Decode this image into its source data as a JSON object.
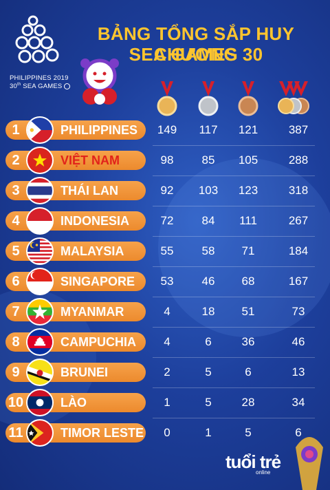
{
  "colors": {
    "title": "#ffc52e",
    "bar": "#ef8e33",
    "highlight_name": "#e2231a",
    "background": "#1d3f9c"
  },
  "event": {
    "line1": "PHILIPPINES 2019",
    "line2": "30",
    "line2_sup": "th",
    "line2_rest": " SEA GAMES"
  },
  "title": {
    "line1": "BẢNG TỔNG SẮP HUY CHƯƠNG",
    "line2": "SEA GAMES 30"
  },
  "medal_icons": [
    "gold-medal-icon",
    "silver-medal-icon",
    "bronze-medal-icon",
    "all-medals-icon"
  ],
  "rows": [
    {
      "rank": "1",
      "name": "PHILIPPINES",
      "gold": "149",
      "silver": "117",
      "bronze": "121",
      "total": "387",
      "flag": "philippines-flag-icon"
    },
    {
      "rank": "2",
      "name": "VIỆT NAM",
      "gold": "98",
      "silver": "85",
      "bronze": "105",
      "total": "288",
      "flag": "vietnam-flag-icon"
    },
    {
      "rank": "3",
      "name": "THÁI LAN",
      "gold": "92",
      "silver": "103",
      "bronze": "123",
      "total": "318",
      "flag": "thailand-flag-icon"
    },
    {
      "rank": "4",
      "name": "INDONESIA",
      "gold": "72",
      "silver": "84",
      "bronze": "111",
      "total": "267",
      "flag": "indonesia-flag-icon"
    },
    {
      "rank": "5",
      "name": "MALAYSIA",
      "gold": "55",
      "silver": "58",
      "bronze": "71",
      "total": "184",
      "flag": "malaysia-flag-icon"
    },
    {
      "rank": "6",
      "name": "SINGAPORE",
      "gold": "53",
      "silver": "46",
      "bronze": "68",
      "total": "167",
      "flag": "singapore-flag-icon"
    },
    {
      "rank": "7",
      "name": "MYANMAR",
      "gold": "4",
      "silver": "18",
      "bronze": "51",
      "total": "73",
      "flag": "myanmar-flag-icon"
    },
    {
      "rank": "8",
      "name": "CAMPUCHIA",
      "gold": "4",
      "silver": "6",
      "bronze": "36",
      "total": "46",
      "flag": "cambodia-flag-icon"
    },
    {
      "rank": "9",
      "name": "BRUNEI",
      "gold": "2",
      "silver": "5",
      "bronze": "6",
      "total": "13",
      "flag": "brunei-flag-icon"
    },
    {
      "rank": "10",
      "name": "LÀO",
      "gold": "1",
      "silver": "5",
      "bronze": "28",
      "total": "34",
      "flag": "laos-flag-icon"
    },
    {
      "rank": "11",
      "name": "TIMOR LESTE",
      "gold": "0",
      "silver": "1",
      "bronze": "5",
      "total": "6",
      "flag": "timor-leste-flag-icon"
    }
  ],
  "brand": {
    "name": "tuổi trẻ",
    "sub": "online"
  }
}
